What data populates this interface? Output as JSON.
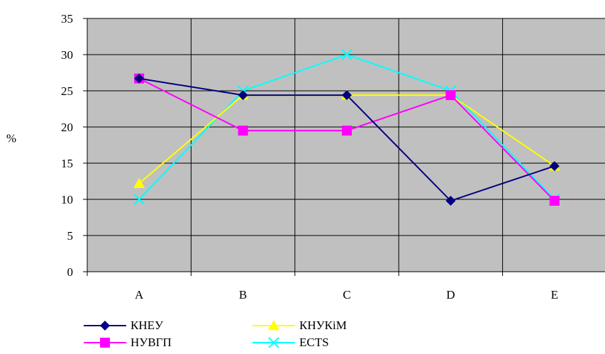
{
  "chart_data": {
    "type": "line",
    "categories": [
      "A",
      "B",
      "C",
      "D",
      "E"
    ],
    "ylabel": "%",
    "xlabel": "",
    "title": "",
    "ylim": [
      0,
      35
    ],
    "yticks": [
      0,
      5,
      10,
      15,
      20,
      25,
      30,
      35
    ],
    "grid": true,
    "plot_background": "#c0c0c0",
    "legend_position": "bottom-left",
    "series": [
      {
        "name": "КНЕУ",
        "values": [
          26.7,
          24.4,
          24.4,
          9.8,
          14.6
        ],
        "color": "#000080",
        "marker": "diamond"
      },
      {
        "name": "НУВГП",
        "values": [
          26.7,
          19.5,
          19.5,
          24.4,
          9.8
        ],
        "color": "#ff00ff",
        "marker": "square"
      },
      {
        "name": "КНУКіМ",
        "values": [
          12.2,
          24.4,
          24.4,
          24.4,
          14.6
        ],
        "color": "#ffff00",
        "marker": "triangle"
      },
      {
        "name": "ECTS",
        "values": [
          10,
          25,
          30,
          25,
          10
        ],
        "color": "#00ffff",
        "marker": "x"
      }
    ]
  }
}
